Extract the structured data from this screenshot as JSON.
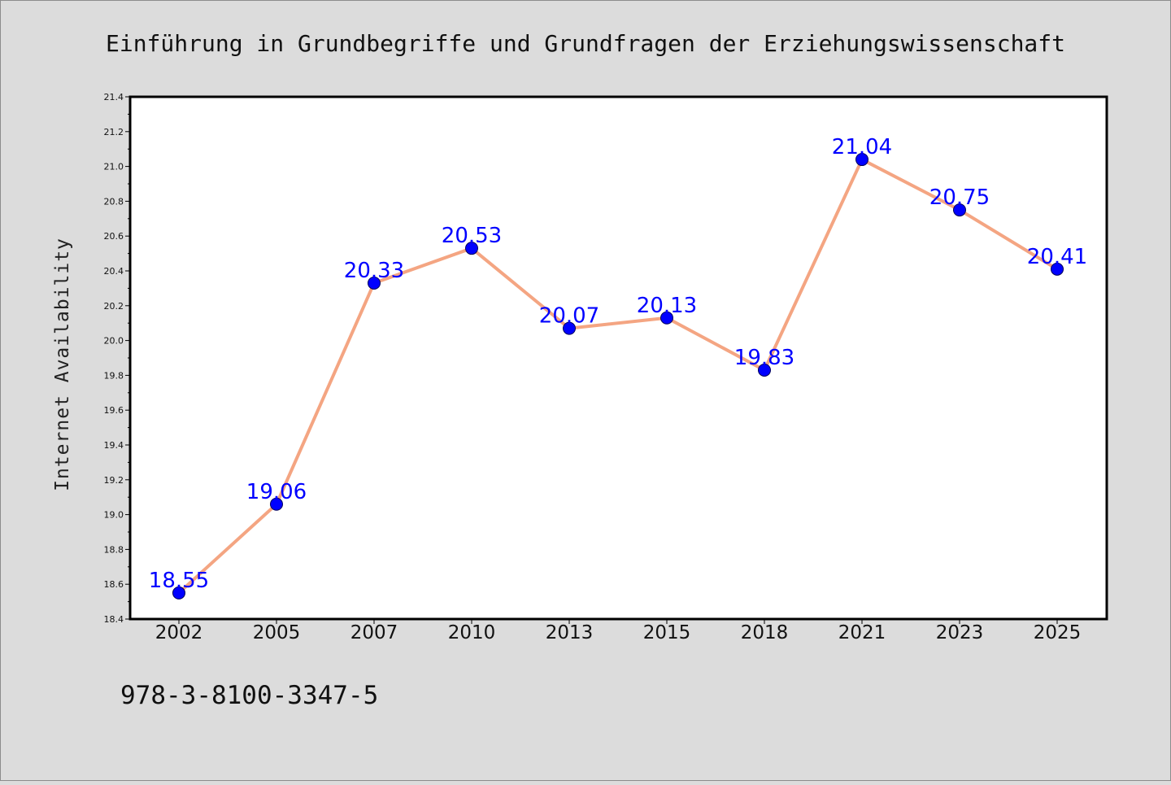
{
  "title": "Einführung in Grundbegriffe und Grundfragen der Erziehungswissenschaft",
  "isbn": "978-3-8100-3347-5",
  "chart_data": {
    "type": "line",
    "title": "Einführung in Grundbegriffe und Grundfragen der Erziehungswissenschaft",
    "xlabel": "",
    "ylabel": "Internet Availability",
    "categories": [
      "2002",
      "2005",
      "2007",
      "2010",
      "2013",
      "2015",
      "2018",
      "2021",
      "2023",
      "2025"
    ],
    "values": [
      18.55,
      19.06,
      20.33,
      20.53,
      20.07,
      20.13,
      19.83,
      21.04,
      20.75,
      20.41
    ],
    "data_labels": [
      "18.55",
      "19.06",
      "20.33",
      "20.53",
      "20.07",
      "20.13",
      "19.83",
      "21.04",
      "20.75",
      "20.41"
    ],
    "ylim": [
      18.4,
      21.4
    ],
    "yticks": [
      "18.4",
      "18.6",
      "18.8",
      "19.0",
      "19.2",
      "19.4",
      "19.6",
      "19.8",
      "20.0",
      "20.2",
      "20.4",
      "20.6",
      "20.8",
      "21.0",
      "21.2",
      "21.4"
    ],
    "grid": false,
    "legend": "none",
    "colors": {
      "line": "#f4a582",
      "marker": "#0000ff",
      "labels": "#0000ff",
      "background": "#dcdcdc",
      "plot_area": "#ffffff"
    }
  }
}
